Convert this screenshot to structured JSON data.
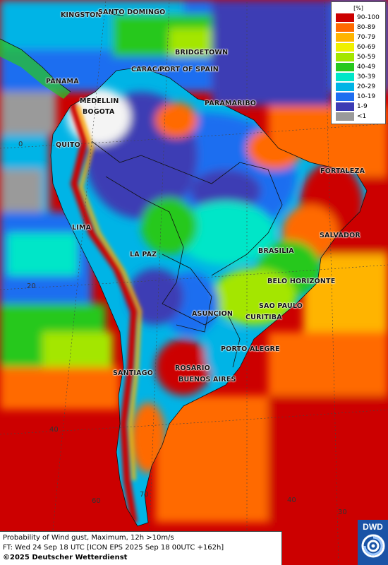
{
  "legend": {
    "title": "[%]",
    "items": [
      {
        "label": "90-100",
        "color": "#cc0000"
      },
      {
        "label": "80-89",
        "color": "#ff6a00"
      },
      {
        "label": "70-79",
        "color": "#ffb400"
      },
      {
        "label": "60-69",
        "color": "#f0f000"
      },
      {
        "label": "50-59",
        "color": "#a4e600"
      },
      {
        "label": "40-49",
        "color": "#28c81e"
      },
      {
        "label": "30-39",
        "color": "#00e6c8"
      },
      {
        "label": "20-29",
        "color": "#00b4e6"
      },
      {
        "label": "10-19",
        "color": "#1e6ef0"
      },
      {
        "label": "1-9",
        "color": "#3c3cb4"
      },
      {
        "label": "<1",
        "color": "#9a9a9a"
      }
    ]
  },
  "cities": [
    {
      "name": "KINGSTON"
    },
    {
      "name": "SANTO DOMINGO"
    },
    {
      "name": "BRIDGETOWN"
    },
    {
      "name": "CARACAS"
    },
    {
      "name": "PORT OF SPAIN"
    },
    {
      "name": "PANAMA"
    },
    {
      "name": "MEDELLIN"
    },
    {
      "name": "BOGOTA"
    },
    {
      "name": "PARAMARIBO"
    },
    {
      "name": "QUITO"
    },
    {
      "name": "FORTALEZA"
    },
    {
      "name": "SALVADOR"
    },
    {
      "name": "LIMA"
    },
    {
      "name": "LA PAZ"
    },
    {
      "name": "BRASILIA"
    },
    {
      "name": "BELO HORIZONTE"
    },
    {
      "name": "SAO PAULO"
    },
    {
      "name": "ASUNCION"
    },
    {
      "name": "CURITIBA"
    },
    {
      "name": "PORTO ALEGRE"
    },
    {
      "name": "ROSARIO"
    },
    {
      "name": "BUENOS AIRES"
    },
    {
      "name": "SANTIAGO"
    }
  ],
  "grid_labels": [
    "0",
    "20",
    "40",
    "60",
    "70",
    "40",
    "30"
  ],
  "footer": {
    "line1": "Probability of Wind gust, Maximum, 12h >10m/s",
    "line2": "FT: Wed 24 Sep 18 UTC [ICON EPS 2025 Sep 18 00UTC +162h]",
    "line3": "©2025 Deutscher Wetterdienst"
  },
  "logo": {
    "text": "DWD"
  }
}
